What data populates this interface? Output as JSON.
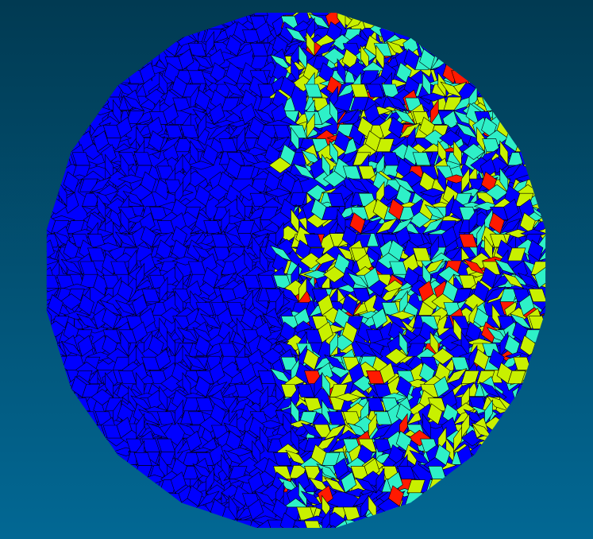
{
  "background": {
    "top_color": "#013a52",
    "bottom_color": "#026894"
  },
  "tiling": {
    "kind": "penrose-rhombus",
    "outline_color": "#000000",
    "colors": {
      "base": "#0000ff",
      "cyan": "#2ef0c8",
      "lime": "#c8f000",
      "red": "#ff1a00"
    }
  }
}
